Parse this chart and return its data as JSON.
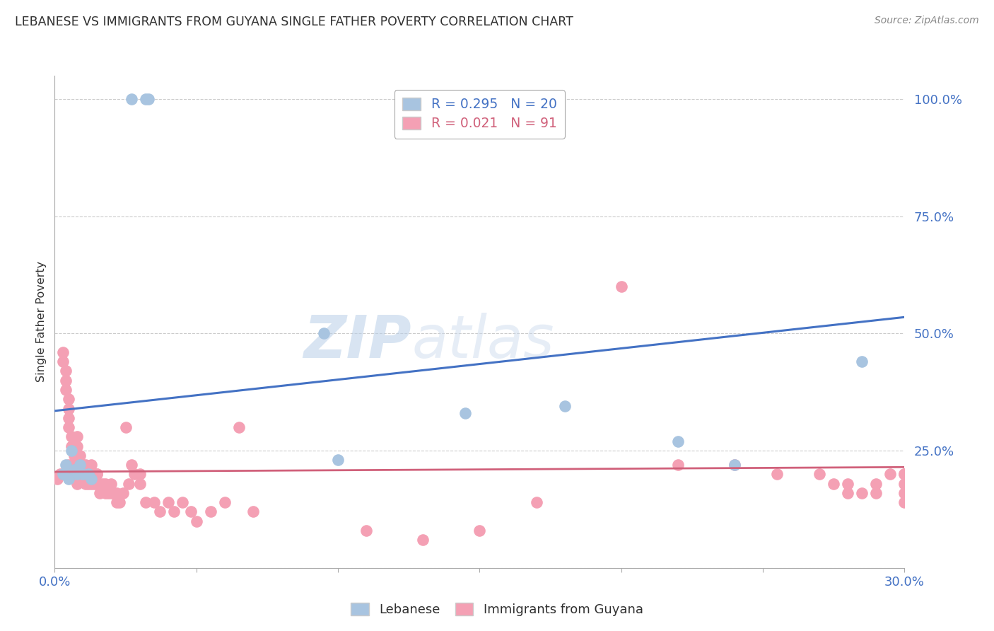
{
  "title": "LEBANESE VS IMMIGRANTS FROM GUYANA SINGLE FATHER POVERTY CORRELATION CHART",
  "source": "Source: ZipAtlas.com",
  "ylabel": "Single Father Poverty",
  "xlim": [
    0.0,
    0.3
  ],
  "ylim": [
    0.0,
    1.05
  ],
  "color_lebanese": "#a8c4e0",
  "color_guyana": "#f4a0b4",
  "color_line_lebanese": "#4472c4",
  "color_line_guyana": "#d0607a",
  "color_title": "#303030",
  "color_source": "#888888",
  "color_yticks": "#4472c4",
  "color_xticks": "#4472c4",
  "watermark_color": "#d0dff0",
  "lebanese_x": [
    0.003,
    0.004,
    0.005,
    0.006,
    0.007,
    0.008,
    0.009,
    0.01,
    0.012,
    0.013,
    0.027,
    0.033,
    0.032,
    0.095,
    0.1,
    0.145,
    0.18,
    0.22,
    0.24,
    0.285
  ],
  "lebanese_y": [
    0.2,
    0.22,
    0.19,
    0.25,
    0.21,
    0.2,
    0.22,
    0.2,
    0.2,
    0.19,
    1.0,
    1.0,
    1.0,
    0.5,
    0.23,
    0.33,
    0.345,
    0.27,
    0.22,
    0.44
  ],
  "guyana_x": [
    0.001,
    0.002,
    0.003,
    0.003,
    0.004,
    0.004,
    0.004,
    0.005,
    0.005,
    0.005,
    0.005,
    0.005,
    0.006,
    0.006,
    0.006,
    0.007,
    0.007,
    0.008,
    0.008,
    0.008,
    0.008,
    0.009,
    0.009,
    0.009,
    0.01,
    0.01,
    0.011,
    0.011,
    0.012,
    0.012,
    0.013,
    0.013,
    0.013,
    0.014,
    0.014,
    0.015,
    0.015,
    0.015,
    0.015,
    0.016,
    0.016,
    0.017,
    0.018,
    0.018,
    0.019,
    0.02,
    0.02,
    0.021,
    0.022,
    0.022,
    0.023,
    0.024,
    0.025,
    0.026,
    0.027,
    0.028,
    0.03,
    0.03,
    0.032,
    0.035,
    0.037,
    0.04,
    0.042,
    0.045,
    0.048,
    0.05,
    0.055,
    0.06,
    0.065,
    0.07,
    0.11,
    0.13,
    0.15,
    0.17,
    0.2,
    0.22,
    0.24,
    0.255,
    0.27,
    0.275,
    0.28,
    0.28,
    0.285,
    0.29,
    0.29,
    0.295,
    0.3,
    0.3,
    0.3,
    0.3,
    0.3
  ],
  "guyana_y": [
    0.19,
    0.2,
    0.46,
    0.44,
    0.42,
    0.4,
    0.38,
    0.36,
    0.34,
    0.32,
    0.3,
    0.22,
    0.28,
    0.26,
    0.2,
    0.24,
    0.22,
    0.28,
    0.26,
    0.2,
    0.18,
    0.24,
    0.22,
    0.2,
    0.22,
    0.2,
    0.22,
    0.18,
    0.2,
    0.18,
    0.22,
    0.2,
    0.18,
    0.2,
    0.18,
    0.2,
    0.2,
    0.18,
    0.18,
    0.18,
    0.16,
    0.18,
    0.18,
    0.16,
    0.16,
    0.18,
    0.16,
    0.16,
    0.16,
    0.14,
    0.14,
    0.16,
    0.3,
    0.18,
    0.22,
    0.2,
    0.2,
    0.18,
    0.14,
    0.14,
    0.12,
    0.14,
    0.12,
    0.14,
    0.12,
    0.1,
    0.12,
    0.14,
    0.3,
    0.12,
    0.08,
    0.06,
    0.08,
    0.14,
    0.6,
    0.22,
    0.22,
    0.2,
    0.2,
    0.18,
    0.18,
    0.16,
    0.16,
    0.18,
    0.16,
    0.2,
    0.2,
    0.2,
    0.18,
    0.16,
    0.14
  ],
  "line_leb_x0": 0.0,
  "line_leb_y0": 0.335,
  "line_leb_x1": 0.3,
  "line_leb_y1": 0.535,
  "line_guy_x0": 0.0,
  "line_guy_y0": 0.205,
  "line_guy_x1": 0.3,
  "line_guy_y1": 0.215
}
